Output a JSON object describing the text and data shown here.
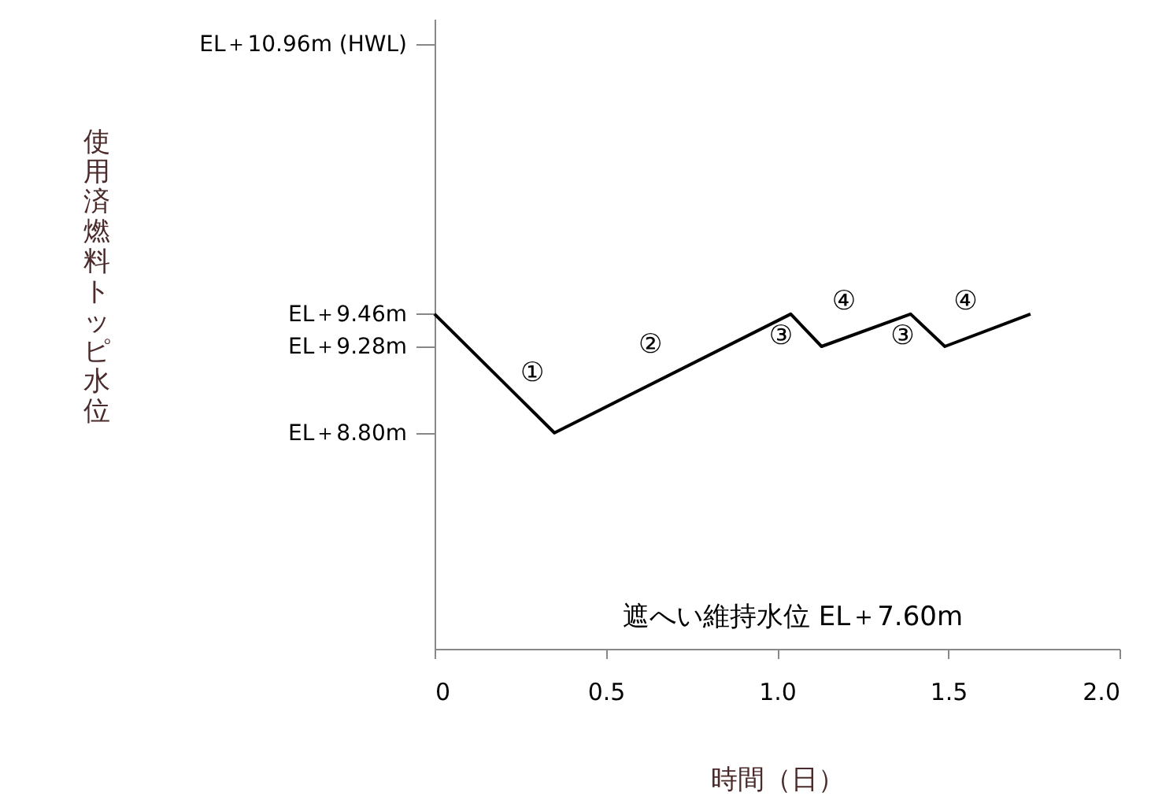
{
  "chart_data": {
    "type": "line",
    "xlabel": "時間（日）",
    "ylabel": "使用済燃料トッピ水位",
    "x": [
      0,
      0.35,
      1.04,
      1.13,
      1.39,
      1.49,
      1.74
    ],
    "series": [
      {
        "color": "#000000",
        "values": [
          9.46,
          8.8,
          9.46,
          9.28,
          9.46,
          9.28,
          9.46
        ]
      }
    ],
    "xlim": [
      0,
      2
    ],
    "xticks": [
      0,
      0.5,
      {
        "value": 1,
        "label": "1.0"
      },
      1.5,
      {
        "value": 2,
        "label": "2.0"
      }
    ],
    "ylim": [
      7.6,
      11.1
    ],
    "yticks": [
      {
        "value": 8.8,
        "label": "EL＋8.80m"
      },
      {
        "value": 9.28,
        "label": "EL＋9.28m"
      },
      {
        "value": 9.46,
        "label": "EL＋9.46m"
      },
      {
        "value": 10.96,
        "label": "EL＋10.96m (HWL)"
      }
    ],
    "grid": false,
    "marker": "none",
    "line_style": "solid",
    "annotations": [
      "①",
      "②",
      "③",
      "④",
      "③",
      "④",
      "遮へい維持水位 EL＋7.60m"
    ]
  }
}
